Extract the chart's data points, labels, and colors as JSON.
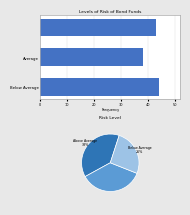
{
  "bar_title": "Levels of Risk of Bond Funds",
  "bar_categories": [
    "",
    "Average",
    "Below Average"
  ],
  "bar_values": [
    43,
    38,
    44
  ],
  "bar_color": "#4472C4",
  "bar_xlabel": "Frequency",
  "bar_xlim": [
    0,
    52
  ],
  "bar_xticks": [
    0,
    10,
    20,
    30,
    40,
    50
  ],
  "pie_title": "Risk Level",
  "pie_labels": [
    "Above Average\n38%",
    "",
    "Below Average\n26%"
  ],
  "pie_sizes": [
    38,
    36,
    26
  ],
  "pie_colors": [
    "#2E75B6",
    "#5B9BD5",
    "#9DC3E6"
  ],
  "pie_startangle": 72,
  "fig_bg": "#E8E8E8",
  "chart_bg": "#FFFFFF",
  "border_color": "#AAAAAA"
}
